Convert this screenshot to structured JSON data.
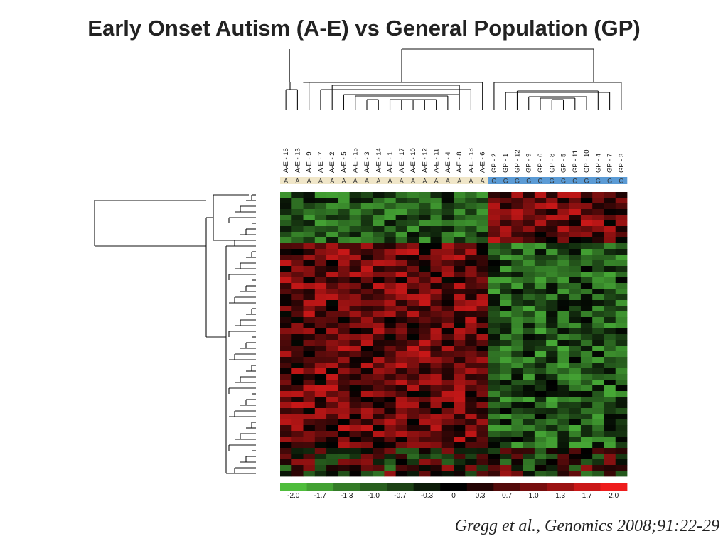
{
  "title": "Early Onset Autism (A-E) vs General Population (GP)",
  "citation": "Gregg et al., Genomics 2008;91:22-29",
  "chart_data": {
    "type": "heatmap",
    "samples": [
      "A-E - 16",
      "A-E - 13",
      "A-E - 9",
      "A-E - 7",
      "A-E - 2",
      "A-E - 5",
      "A-E - 15",
      "A-E - 3",
      "A-E - 14",
      "A-E - 1",
      "A-E - 17",
      "A-E - 10",
      "A-E - 12",
      "A-E - 11",
      "A-E - 4",
      "A-E - 8",
      "A-E - 18",
      "A-E - 6",
      "GP - 2",
      "GP - 1",
      "GP - 12",
      "GP - 9",
      "GP - 6",
      "GP - 8",
      "GP - 5",
      "GP - 11",
      "GP - 10",
      "GP - 4",
      "GP - 7",
      "GP - 3"
    ],
    "groups": [
      "A",
      "A",
      "A",
      "A",
      "A",
      "A",
      "A",
      "A",
      "A",
      "A",
      "A",
      "A",
      "A",
      "A",
      "A",
      "A",
      "A",
      "A",
      "G",
      "G",
      "G",
      "G",
      "G",
      "G",
      "G",
      "G",
      "G",
      "G",
      "G",
      "G"
    ],
    "group_colors": {
      "A": "#f0e6c8",
      "G": "#5b9bd5"
    },
    "row_count": 50,
    "color_scale": {
      "ticks": [
        -2.0,
        -1.7,
        -1.3,
        -1.0,
        -0.7,
        -0.3,
        0,
        0.3,
        0.7,
        1.0,
        1.3,
        1.7,
        2.0
      ],
      "tick_labels": [
        "-2.0",
        "-1.7",
        "-1.3",
        "-1.0",
        "-0.7",
        "-0.3",
        "0",
        "0.3",
        "0.7",
        "1.0",
        "1.3",
        "1.7",
        "2.0"
      ],
      "low_color": "#4fbd3c",
      "mid_color": "#000000",
      "high_color": "#ee1c1c",
      "range": [
        -2.0,
        2.0
      ]
    },
    "column_dendrogram": true,
    "row_dendrogram": true
  }
}
